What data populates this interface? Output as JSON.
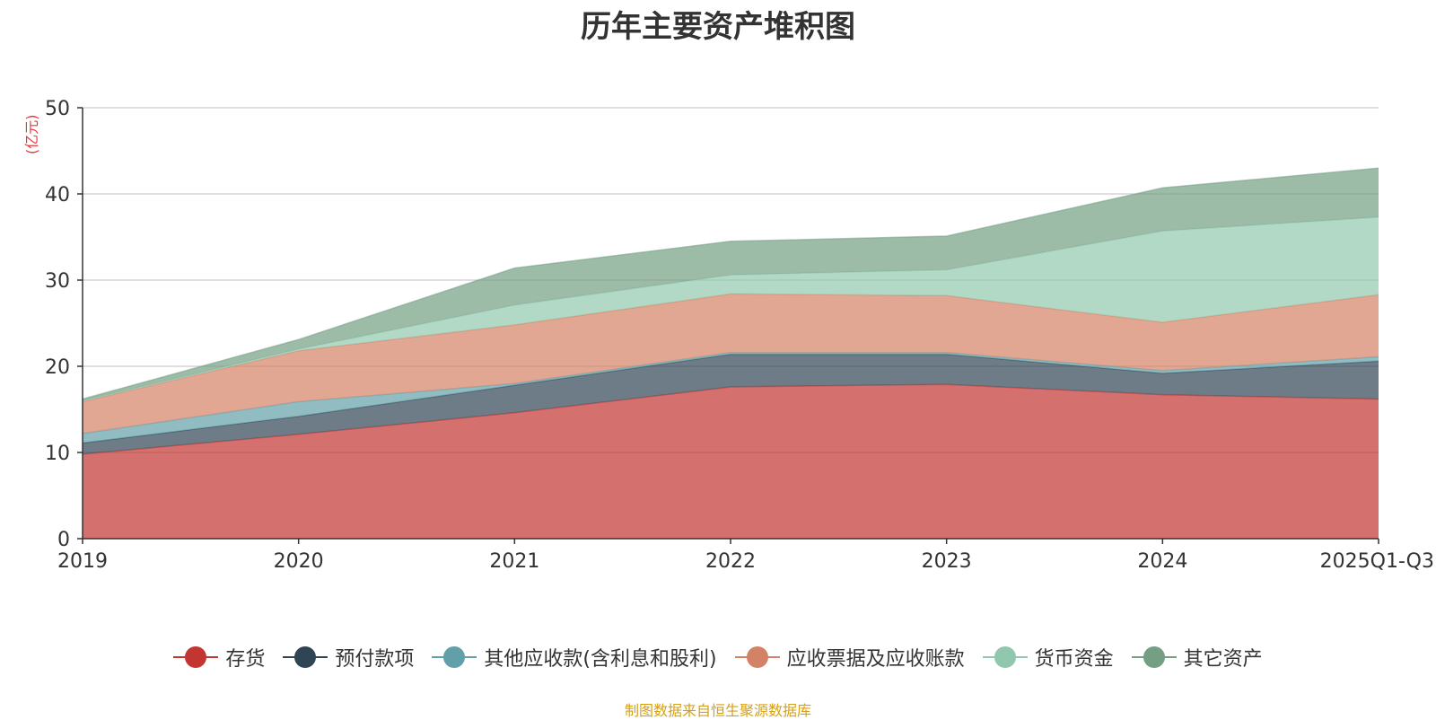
{
  "chart_data": {
    "type": "area",
    "stacked": true,
    "title": "历年主要资产堆积图",
    "ylabel": "(亿元)",
    "xlabel": "",
    "categories": [
      "2019",
      "2020",
      "2021",
      "2022",
      "2023",
      "2024",
      "2025Q1-Q3"
    ],
    "ylim": [
      0,
      50
    ],
    "yticks": [
      0,
      10,
      20,
      30,
      40,
      50
    ],
    "grid": true,
    "legend_position": "bottom",
    "series": [
      {
        "name": "存货",
        "color": "#c23531",
        "values": [
          9.8,
          12.1,
          14.6,
          17.6,
          17.9,
          16.7,
          16.2
        ]
      },
      {
        "name": "预付款项",
        "color": "#2f4554",
        "values": [
          1.3,
          2.1,
          3.2,
          3.8,
          3.5,
          2.5,
          4.4
        ]
      },
      {
        "name": "其他应收款(含利息和股利)",
        "color": "#61a0a8",
        "values": [
          1.1,
          1.7,
          0.2,
          0.2,
          0.2,
          0.3,
          0.5
        ]
      },
      {
        "name": "应收票据及应收账款",
        "color": "#d48265",
        "values": [
          3.7,
          5.9,
          6.8,
          6.8,
          6.6,
          5.6,
          7.2
        ]
      },
      {
        "name": "货币资金",
        "color": "#91c7ae",
        "values": [
          0.1,
          0.2,
          2.3,
          2.2,
          3.0,
          10.6,
          9.0
        ]
      },
      {
        "name": "其它资产",
        "color": "#749f83",
        "values": [
          0.2,
          1.1,
          4.3,
          3.9,
          3.9,
          5.0,
          5.7
        ]
      }
    ]
  },
  "footer": {
    "source": "制图数据来自恒生聚源数据库"
  }
}
